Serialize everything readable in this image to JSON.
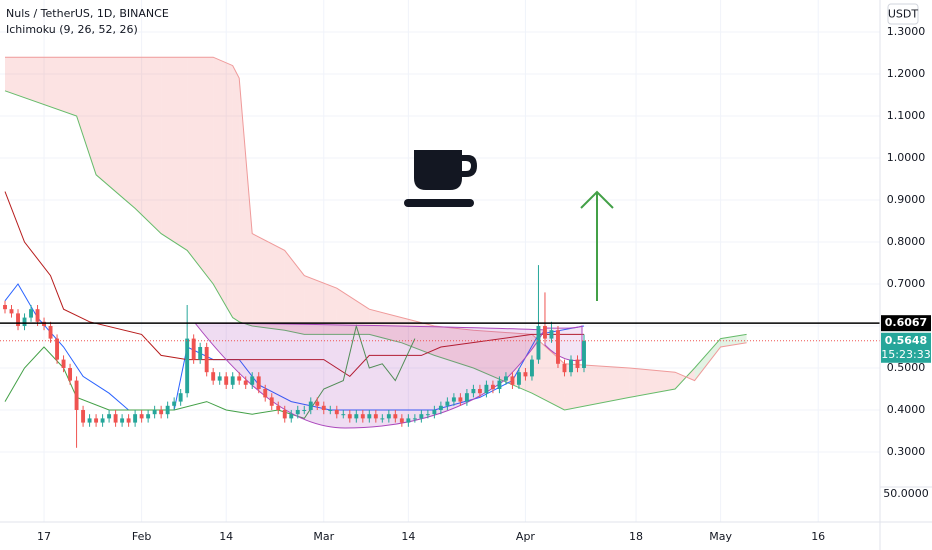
{
  "chart_data": {
    "type": "candlestick",
    "title": "Nuls / TetherUS, 1D, BINANCE",
    "indicator": "Ichimoku (9, 26, 52, 26)",
    "currency_button": "USDT",
    "countdown": "15:23:33",
    "volume_axis_label": "50.0000",
    "xlim": [
      -6.77,
      128.5
    ],
    "ylim": [
      0.1333,
      1.3762
    ],
    "grid": true,
    "up_color": "#26a69a",
    "down_color": "#ef5350",
    "xticks": [
      {
        "value": 0,
        "label": "17"
      },
      {
        "value": 15,
        "label": "Feb"
      },
      {
        "value": 28,
        "label": "14"
      },
      {
        "value": 43,
        "label": "Mar"
      },
      {
        "value": 56,
        "label": "14"
      },
      {
        "value": 74,
        "label": "Apr"
      },
      {
        "value": 91,
        "label": "18"
      },
      {
        "value": 104,
        "label": "May"
      },
      {
        "value": 119,
        "label": "16"
      }
    ],
    "yticks": [
      {
        "value": 0.3,
        "label": "0.3000"
      },
      {
        "value": 0.4,
        "label": "0.4000"
      },
      {
        "value": 0.5,
        "label": "0.5000"
      },
      {
        "value": 0.6,
        "label": "0.6000"
      },
      {
        "value": 0.7,
        "label": "0.7000"
      },
      {
        "value": 0.8,
        "label": "0.8000"
      },
      {
        "value": 0.9,
        "label": "0.9000"
      },
      {
        "value": 1.0,
        "label": "1.0000"
      },
      {
        "value": 1.1,
        "label": "1.1000"
      },
      {
        "value": 1.2,
        "label": "1.2000"
      },
      {
        "value": 1.3,
        "label": "1.3000"
      }
    ],
    "level": {
      "value": 0.6067,
      "label": "0.6067",
      "color": "#000000"
    },
    "x": [
      -6,
      -5,
      -4,
      -3,
      -2,
      -1,
      0,
      1,
      2,
      3,
      4,
      5,
      6,
      7,
      8,
      9,
      10,
      11,
      12,
      13,
      14,
      15,
      16,
      17,
      18,
      19,
      20,
      21,
      22,
      23,
      24,
      25,
      26,
      27,
      28,
      29,
      30,
      31,
      32,
      33,
      34,
      35,
      36,
      37,
      38,
      39,
      40,
      41,
      42,
      43,
      44,
      45,
      46,
      47,
      48,
      49,
      50,
      51,
      52,
      53,
      54,
      55,
      56,
      57,
      58,
      59,
      60,
      61,
      62,
      63,
      64,
      65,
      66,
      67,
      68,
      69,
      70,
      71,
      72,
      73,
      74,
      75,
      76,
      77,
      78,
      79,
      80,
      81,
      82,
      83
    ],
    "open": [
      0.65,
      0.64,
      0.63,
      0.6,
      0.62,
      0.64,
      0.61,
      0.6,
      0.57,
      0.52,
      0.5,
      0.47,
      0.4,
      0.37,
      0.38,
      0.37,
      0.38,
      0.39,
      0.37,
      0.38,
      0.37,
      0.39,
      0.38,
      0.39,
      0.4,
      0.39,
      0.41,
      0.42,
      0.44,
      0.57,
      0.52,
      0.55,
      0.49,
      0.47,
      0.48,
      0.46,
      0.48,
      0.47,
      0.46,
      0.48,
      0.45,
      0.43,
      0.41,
      0.4,
      0.38,
      0.39,
      0.4,
      0.4,
      0.42,
      0.41,
      0.4,
      0.4,
      0.39,
      0.39,
      0.38,
      0.39,
      0.38,
      0.39,
      0.38,
      0.38,
      0.39,
      0.38,
      0.37,
      0.38,
      0.38,
      0.39,
      0.39,
      0.4,
      0.41,
      0.42,
      0.43,
      0.42,
      0.44,
      0.45,
      0.44,
      0.46,
      0.45,
      0.47,
      0.48,
      0.46,
      0.49,
      0.48,
      0.52,
      0.6,
      0.57,
      0.59,
      0.51,
      0.49,
      0.52,
      0.5
    ],
    "high": [
      0.66,
      0.65,
      0.64,
      0.63,
      0.65,
      0.65,
      0.62,
      0.61,
      0.58,
      0.53,
      0.51,
      0.48,
      0.41,
      0.39,
      0.39,
      0.39,
      0.4,
      0.4,
      0.39,
      0.39,
      0.4,
      0.4,
      0.4,
      0.41,
      0.41,
      0.42,
      0.43,
      0.45,
      0.65,
      0.58,
      0.56,
      0.56,
      0.5,
      0.49,
      0.49,
      0.49,
      0.49,
      0.48,
      0.49,
      0.49,
      0.46,
      0.44,
      0.42,
      0.41,
      0.4,
      0.41,
      0.41,
      0.43,
      0.43,
      0.42,
      0.41,
      0.41,
      0.4,
      0.4,
      0.4,
      0.4,
      0.4,
      0.4,
      0.39,
      0.4,
      0.4,
      0.39,
      0.39,
      0.39,
      0.4,
      0.4,
      0.41,
      0.42,
      0.43,
      0.44,
      0.44,
      0.45,
      0.46,
      0.46,
      0.47,
      0.47,
      0.48,
      0.49,
      0.49,
      0.5,
      0.5,
      0.53,
      0.745,
      0.68,
      0.61,
      0.6,
      0.52,
      0.53,
      0.53,
      0.58
    ],
    "low": [
      0.63,
      0.62,
      0.59,
      0.59,
      0.61,
      0.6,
      0.59,
      0.56,
      0.51,
      0.49,
      0.46,
      0.31,
      0.36,
      0.36,
      0.36,
      0.36,
      0.37,
      0.36,
      0.36,
      0.36,
      0.36,
      0.37,
      0.37,
      0.38,
      0.38,
      0.38,
      0.4,
      0.41,
      0.43,
      0.51,
      0.51,
      0.48,
      0.46,
      0.46,
      0.45,
      0.45,
      0.46,
      0.45,
      0.45,
      0.44,
      0.42,
      0.4,
      0.39,
      0.37,
      0.37,
      0.38,
      0.39,
      0.39,
      0.4,
      0.39,
      0.39,
      0.38,
      0.38,
      0.37,
      0.37,
      0.37,
      0.37,
      0.37,
      0.37,
      0.37,
      0.37,
      0.36,
      0.36,
      0.37,
      0.37,
      0.38,
      0.38,
      0.39,
      0.4,
      0.41,
      0.41,
      0.41,
      0.43,
      0.43,
      0.43,
      0.44,
      0.44,
      0.46,
      0.45,
      0.45,
      0.47,
      0.47,
      0.51,
      0.56,
      0.56,
      0.5,
      0.48,
      0.48,
      0.49,
      0.49
    ],
    "close": [
      0.64,
      0.63,
      0.6,
      0.62,
      0.64,
      0.61,
      0.6,
      0.57,
      0.52,
      0.5,
      0.47,
      0.4,
      0.37,
      0.38,
      0.37,
      0.38,
      0.39,
      0.37,
      0.38,
      0.37,
      0.39,
      0.38,
      0.39,
      0.4,
      0.39,
      0.41,
      0.42,
      0.44,
      0.57,
      0.52,
      0.55,
      0.49,
      0.47,
      0.48,
      0.46,
      0.48,
      0.47,
      0.46,
      0.48,
      0.45,
      0.43,
      0.41,
      0.4,
      0.38,
      0.39,
      0.4,
      0.4,
      0.42,
      0.41,
      0.4,
      0.4,
      0.39,
      0.39,
      0.38,
      0.39,
      0.38,
      0.39,
      0.38,
      0.38,
      0.39,
      0.38,
      0.37,
      0.38,
      0.38,
      0.39,
      0.39,
      0.4,
      0.41,
      0.42,
      0.43,
      0.42,
      0.44,
      0.45,
      0.44,
      0.46,
      0.45,
      0.47,
      0.48,
      0.46,
      0.49,
      0.48,
      0.52,
      0.6,
      0.57,
      0.59,
      0.51,
      0.49,
      0.52,
      0.5,
      0.5648
    ],
    "lines": [
      {
        "color": "#2962ff",
        "x": [
          -6,
          -4,
          -1,
          3,
          6,
          10,
          13,
          20,
          22,
          26,
          30,
          33,
          38,
          44,
          55,
          60,
          67,
          72,
          76,
          83
        ],
        "values": [
          0.66,
          0.7,
          0.62,
          0.55,
          0.48,
          0.44,
          0.4,
          0.4,
          0.55,
          0.52,
          0.52,
          0.46,
          0.42,
          0.4,
          0.4,
          0.4,
          0.43,
          0.47,
          0.58,
          0.6
        ]
      },
      {
        "color": "#b71c1c",
        "x": [
          -6,
          -3,
          1,
          3,
          7,
          15,
          18,
          22,
          30,
          43,
          47,
          50,
          58,
          61,
          75,
          83
        ],
        "values": [
          0.92,
          0.8,
          0.72,
          0.64,
          0.61,
          0.58,
          0.53,
          0.52,
          0.52,
          0.52,
          0.48,
          0.53,
          0.53,
          0.55,
          0.58,
          0.58
        ]
      },
      {
        "color": "#43a047",
        "x": [
          -6,
          -3,
          0,
          3,
          5,
          10,
          20,
          25,
          28,
          32,
          36,
          40,
          43,
          46,
          48,
          50,
          52,
          54,
          57
        ],
        "values": [
          0.42,
          0.5,
          0.55,
          0.5,
          0.43,
          0.4,
          0.4,
          0.42,
          0.4,
          0.39,
          0.4,
          0.38,
          0.45,
          0.47,
          0.6,
          0.5,
          0.51,
          0.47,
          0.57
        ]
      }
    ],
    "cloud": {
      "x": [
        -6,
        5,
        8,
        14,
        18,
        22,
        26,
        29,
        30,
        32,
        37,
        40,
        45,
        50,
        55,
        60,
        66,
        75,
        80,
        90,
        97,
        100,
        104,
        108
      ],
      "span_a": [
        1.16,
        1.1,
        0.96,
        0.88,
        0.82,
        0.78,
        0.7,
        0.62,
        0.61,
        0.6,
        0.59,
        0.58,
        0.58,
        0.58,
        0.56,
        0.53,
        0.5,
        0.44,
        0.4,
        0.43,
        0.45,
        0.5,
        0.57,
        0.58
      ],
      "span_b": [
        1.24,
        1.24,
        1.24,
        1.24,
        1.24,
        1.24,
        1.24,
        1.22,
        1.19,
        0.82,
        0.78,
        0.72,
        0.69,
        0.64,
        0.62,
        0.6,
        0.59,
        0.58,
        0.51,
        0.5,
        0.49,
        0.47,
        0.55,
        0.56
      ],
      "color_a": "#66bb6a",
      "color_b": "#ef9a9a"
    }
  }
}
